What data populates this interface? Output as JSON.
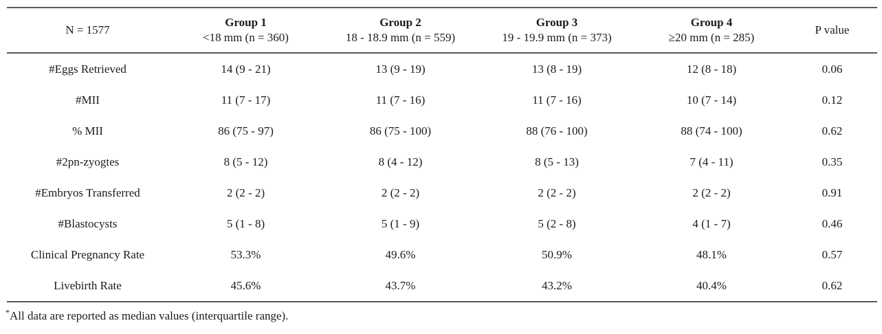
{
  "table": {
    "n_label": "N = 1577",
    "p_label": "P value",
    "groups": [
      {
        "title": "Group 1",
        "subtitle": "<18 mm (n = 360)"
      },
      {
        "title": "Group 2",
        "subtitle": "18 - 18.9 mm (n = 559)"
      },
      {
        "title": "Group 3",
        "subtitle": "19 - 19.9 mm (n = 373)"
      },
      {
        "title": "Group 4",
        "subtitle": "≥20 mm (n = 285)"
      }
    ],
    "rows": [
      {
        "label": "#Eggs Retrieved",
        "values": [
          "14 (9 - 21)",
          "13 (9 - 19)",
          "13 (8 - 19)",
          "12 (8 - 18)"
        ],
        "p": "0.06"
      },
      {
        "label": "#MII",
        "values": [
          "11 (7 - 17)",
          "11 (7 - 16)",
          "11 (7 - 16)",
          "10 (7 - 14)"
        ],
        "p": "0.12"
      },
      {
        "label": "% MII",
        "values": [
          "86 (75 - 97)",
          "86 (75 - 100)",
          "88 (76 - 100)",
          "88 (74 - 100)"
        ],
        "p": "0.62"
      },
      {
        "label": "#2pn-zyogtes",
        "values": [
          "8 (5 - 12)",
          "8 (4 - 12)",
          "8 (5 - 13)",
          "7 (4 - 11)"
        ],
        "p": "0.35"
      },
      {
        "label": "#Embryos Transferred",
        "values": [
          "2 (2 - 2)",
          "2 (2 - 2)",
          "2 (2 - 2)",
          "2 (2 - 2)"
        ],
        "p": "0.91"
      },
      {
        "label": "#Blastocysts",
        "values": [
          "5 (1 - 8)",
          "5 (1 - 9)",
          "5 (2 - 8)",
          "4 (1 - 7)"
        ],
        "p": "0.46"
      },
      {
        "label": "Clinical Pregnancy Rate",
        "values": [
          "53.3%",
          "49.6%",
          "50.9%",
          "48.1%"
        ],
        "p": "0.57"
      },
      {
        "label": "Livebirth Rate",
        "values": [
          "45.6%",
          "43.7%",
          "43.2%",
          "40.4%"
        ],
        "p": "0.62"
      }
    ],
    "footnote_marker": "*",
    "footnote_text": "All data are reported as median values (interquartile range)."
  },
  "chart_data": {
    "type": "table",
    "title": "",
    "columns": [
      "N = 1577",
      "Group 1 <18 mm (n = 360)",
      "Group 2 18 - 18.9 mm (n = 559)",
      "Group 3 19 - 19.9 mm (n = 373)",
      "Group 4 ≥20 mm (n = 285)",
      "P value"
    ],
    "rows": [
      [
        "#Eggs Retrieved",
        "14 (9 - 21)",
        "13 (9 - 19)",
        "13 (8 - 19)",
        "12 (8 - 18)",
        "0.06"
      ],
      [
        "#MII",
        "11 (7 - 17)",
        "11 (7 - 16)",
        "11 (7 - 16)",
        "10 (7 - 14)",
        "0.12"
      ],
      [
        "% MII",
        "86 (75 - 97)",
        "86 (75 - 100)",
        "88 (76 - 100)",
        "88 (74 - 100)",
        "0.62"
      ],
      [
        "#2pn-zyogtes",
        "8 (5 - 12)",
        "8 (4 - 12)",
        "8 (5 - 13)",
        "7 (4 - 11)",
        "0.35"
      ],
      [
        "#Embryos Transferred",
        "2 (2 - 2)",
        "2 (2 - 2)",
        "2 (2 - 2)",
        "2 (2 - 2)",
        "0.91"
      ],
      [
        "#Blastocysts",
        "5 (1 - 8)",
        "5 (1 - 9)",
        "5 (2 - 8)",
        "4 (1 - 7)",
        "0.46"
      ],
      [
        "Clinical Pregnancy Rate",
        "53.3%",
        "49.6%",
        "50.9%",
        "48.1%",
        "0.57"
      ],
      [
        "Livebirth Rate",
        "45.6%",
        "43.7%",
        "43.2%",
        "40.4%",
        "0.62"
      ]
    ],
    "footnote": "*All data are reported as median values (interquartile range)."
  },
  "colors": {
    "rule": "#58585a",
    "text": "#1b1b1b",
    "background": "#ffffff"
  }
}
